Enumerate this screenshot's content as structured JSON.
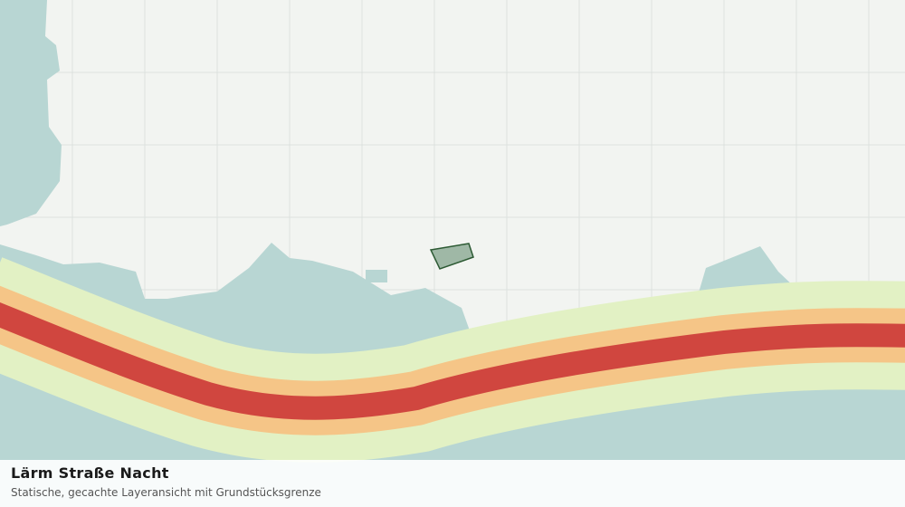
{
  "legend_panel": {
    "title": "Lärm Straße Nacht",
    "subtitle": "Statische, gecachte Layeransicht mit Grundstücksgrenze"
  }
}
